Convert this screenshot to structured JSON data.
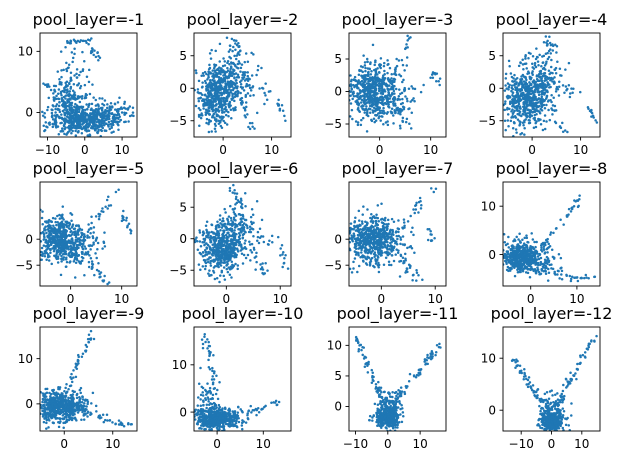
{
  "chart_data": [
    {
      "type": "scatter",
      "title": "pool_layer=-1",
      "xticks": [
        -10,
        0,
        10
      ],
      "yticks": [
        0,
        10
      ],
      "xlim": [
        -12,
        14
      ],
      "ylim": [
        -4,
        13
      ],
      "color": "#1f77b4",
      "clusters": [
        {
          "cx": 0,
          "cy": -1.2,
          "sx": 4.5,
          "sy": 1.1,
          "n": 520
        },
        {
          "cx": -5,
          "cy": 1.5,
          "sx": 2.5,
          "sy": 2.0,
          "n": 160
        },
        {
          "cx": -3,
          "cy": 5,
          "sx": 2.2,
          "sy": 2.5,
          "n": 70
        },
        {
          "cx": 6,
          "cy": 0.2,
          "sx": 4,
          "sy": 1.0,
          "n": 90
        }
      ],
      "lines": [
        {
          "x0": -5,
          "y0": 11.5,
          "x1": 2,
          "y1": 11.7,
          "n": 22,
          "j": 0.25
        },
        {
          "x0": 1,
          "y0": 11.2,
          "x1": 4,
          "y1": 8.5,
          "n": 14,
          "j": 0.3
        },
        {
          "x0": -11,
          "y0": 4.5,
          "x1": -8,
          "y1": 4.2,
          "n": 10,
          "j": 0.25
        },
        {
          "x0": 8,
          "y0": 0,
          "x1": 12.5,
          "y1": 0.8,
          "n": 14,
          "j": 0.3
        }
      ]
    },
    {
      "type": "scatter",
      "title": "pool_layer=-2",
      "xticks": [
        0,
        10
      ],
      "yticks": [
        -5,
        0,
        5
      ],
      "xlim": [
        -6,
        14
      ],
      "ylim": [
        -7.5,
        8.5
      ],
      "color": "#1f77b4",
      "clusters": [
        {
          "cx": -1,
          "cy": -1,
          "sx": 2.2,
          "sy": 2.2,
          "n": 520
        },
        {
          "cx": 2,
          "cy": 2,
          "sx": 2,
          "sy": 2,
          "n": 140
        }
      ],
      "lines": [
        {
          "x0": 1,
          "y0": 7.5,
          "x1": 4,
          "y1": 5,
          "n": 18,
          "j": 0.5
        },
        {
          "x0": 2,
          "y0": 0,
          "x1": 7,
          "y1": -7,
          "n": 22,
          "j": 0.5
        },
        {
          "x0": 3,
          "y0": 2,
          "x1": 9,
          "y1": -1,
          "n": 20,
          "j": 0.6
        },
        {
          "x0": 11,
          "y0": -2,
          "x1": 13,
          "y1": -5,
          "n": 12,
          "j": 0.3
        }
      ]
    },
    {
      "type": "scatter",
      "title": "pool_layer=-3",
      "xticks": [
        0,
        10
      ],
      "yticks": [
        -5,
        0,
        5
      ],
      "xlim": [
        -6,
        13
      ],
      "ylim": [
        -7,
        9
      ],
      "color": "#1f77b4",
      "clusters": [
        {
          "cx": -1.5,
          "cy": 0,
          "sx": 2.2,
          "sy": 2.2,
          "n": 540
        },
        {
          "cx": 3,
          "cy": -1,
          "sx": 2,
          "sy": 2,
          "n": 90
        }
      ],
      "lines": [
        {
          "x0": 2,
          "y0": 1,
          "x1": 6,
          "y1": 8.5,
          "n": 24,
          "j": 0.4
        },
        {
          "x0": 2,
          "y0": -1,
          "x1": 7,
          "y1": -6.5,
          "n": 22,
          "j": 0.5
        },
        {
          "x0": 10,
          "y0": 3.5,
          "x1": 12,
          "y1": 1,
          "n": 12,
          "j": 0.3
        }
      ]
    },
    {
      "type": "scatter",
      "title": "pool_layer=-4",
      "xticks": [
        0,
        10
      ],
      "yticks": [
        -5,
        0,
        5
      ],
      "xlim": [
        -6,
        14
      ],
      "ylim": [
        -7.5,
        8.5
      ],
      "color": "#1f77b4",
      "clusters": [
        {
          "cx": -1,
          "cy": -1.5,
          "sx": 2.2,
          "sy": 2.2,
          "n": 520
        },
        {
          "cx": 2,
          "cy": 2,
          "sx": 2,
          "sy": 2,
          "n": 130
        }
      ],
      "lines": [
        {
          "x0": 3,
          "y0": 8,
          "x1": 5,
          "y1": 5,
          "n": 18,
          "j": 0.5
        },
        {
          "x0": 2,
          "y0": 0,
          "x1": 7,
          "y1": -7,
          "n": 22,
          "j": 0.5
        },
        {
          "x0": 3,
          "y0": 2,
          "x1": 9,
          "y1": -1,
          "n": 20,
          "j": 0.6
        },
        {
          "x0": 11,
          "y0": -2,
          "x1": 13,
          "y1": -5,
          "n": 12,
          "j": 0.3
        }
      ]
    },
    {
      "type": "scatter",
      "title": "pool_layer=-5",
      "xticks": [
        0,
        10
      ],
      "yticks": [
        -5,
        0
      ],
      "xlim": [
        -6,
        13
      ],
      "ylim": [
        -9,
        11
      ],
      "color": "#1f77b4",
      "clusters": [
        {
          "cx": -2,
          "cy": 0,
          "sx": 2.2,
          "sy": 2.2,
          "n": 540
        },
        {
          "cx": 2,
          "cy": -2,
          "sx": 2,
          "sy": 2,
          "n": 90
        }
      ],
      "lines": [
        {
          "x0": 2,
          "y0": 0,
          "x1": 10,
          "y1": 10,
          "n": 28,
          "j": 0.4
        },
        {
          "x0": 2,
          "y0": -2,
          "x1": 7,
          "y1": -8,
          "n": 20,
          "j": 0.5
        },
        {
          "x0": 10,
          "y0": 5,
          "x1": 12,
          "y1": 1,
          "n": 14,
          "j": 0.3
        }
      ]
    },
    {
      "type": "scatter",
      "title": "pool_layer=-6",
      "xticks": [
        0,
        10
      ],
      "yticks": [
        -5,
        0,
        5
      ],
      "xlim": [
        -6,
        12
      ],
      "ylim": [
        -7.5,
        9
      ],
      "color": "#1f77b4",
      "clusters": [
        {
          "cx": -1,
          "cy": -1.5,
          "sx": 2,
          "sy": 2,
          "n": 520
        },
        {
          "cx": 2,
          "cy": 2,
          "sx": 2,
          "sy": 2,
          "n": 120
        }
      ],
      "lines": [
        {
          "x0": 1,
          "y0": 8,
          "x1": 3,
          "y1": 5,
          "n": 16,
          "j": 0.5
        },
        {
          "x0": 3,
          "y0": 0,
          "x1": 7,
          "y1": -5,
          "n": 22,
          "j": 0.5
        },
        {
          "x0": 4,
          "y0": 2,
          "x1": 8,
          "y1": -1,
          "n": 18,
          "j": 0.6
        },
        {
          "x0": 10,
          "y0": 0,
          "x1": 11,
          "y1": -5,
          "n": 12,
          "j": 0.3
        }
      ]
    },
    {
      "type": "scatter",
      "title": "pool_layer=-7",
      "xticks": [
        0,
        10
      ],
      "yticks": [
        -5,
        0
      ],
      "xlim": [
        -6,
        12
      ],
      "ylim": [
        -9,
        11
      ],
      "color": "#1f77b4",
      "clusters": [
        {
          "cx": -2,
          "cy": 0,
          "sx": 2.2,
          "sy": 2.2,
          "n": 540
        },
        {
          "cx": 2,
          "cy": -2,
          "sx": 2,
          "sy": 2,
          "n": 80
        }
      ],
      "lines": [
        {
          "x0": 2,
          "y0": 0,
          "x1": 10,
          "y1": 10,
          "n": 28,
          "j": 0.4
        },
        {
          "x0": 2,
          "y0": -2,
          "x1": 7,
          "y1": -8,
          "n": 20,
          "j": 0.5
        },
        {
          "x0": 9,
          "y0": 2,
          "x1": 10,
          "y1": -1,
          "n": 10,
          "j": 0.3
        }
      ]
    },
    {
      "type": "scatter",
      "title": "pool_layer=-8",
      "xticks": [
        0,
        10
      ],
      "yticks": [
        0,
        10
      ],
      "xlim": [
        -6,
        15
      ],
      "ylim": [
        -6.5,
        15
      ],
      "color": "#1f77b4",
      "clusters": [
        {
          "cx": -2,
          "cy": -0.5,
          "sx": 2,
          "sy": 1.6,
          "n": 520
        },
        {
          "cx": 2,
          "cy": -1,
          "sx": 2.5,
          "sy": 1.8,
          "n": 80
        }
      ],
      "lines": [
        {
          "x0": 2,
          "y0": 1,
          "x1": 12,
          "y1": 13,
          "n": 34,
          "j": 0.4
        },
        {
          "x0": 1,
          "y0": -2,
          "x1": 9,
          "y1": -5,
          "n": 22,
          "j": 0.5
        },
        {
          "x0": 9,
          "y0": -5,
          "x1": 14,
          "y1": -4.5,
          "n": 16,
          "j": 0.3
        }
      ]
    },
    {
      "type": "scatter",
      "title": "pool_layer=-9",
      "xticks": [
        0,
        10
      ],
      "yticks": [
        0,
        10
      ],
      "xlim": [
        -5,
        15
      ],
      "ylim": [
        -6,
        17
      ],
      "color": "#1f77b4",
      "clusters": [
        {
          "cx": -1,
          "cy": -0.5,
          "sx": 2.2,
          "sy": 1.8,
          "n": 500
        },
        {
          "cx": 2,
          "cy": -1,
          "sx": 2.2,
          "sy": 1.5,
          "n": 80
        }
      ],
      "lines": [
        {
          "x0": 0,
          "y0": 2,
          "x1": 6,
          "y1": 16,
          "n": 40,
          "j": 0.4
        },
        {
          "x0": 3,
          "y0": -1,
          "x1": 10,
          "y1": -4,
          "n": 24,
          "j": 0.5
        },
        {
          "x0": 10,
          "y0": -4.5,
          "x1": 14,
          "y1": -4.5,
          "n": 16,
          "j": 0.3
        }
      ]
    },
    {
      "type": "scatter",
      "title": "pool_layer=-10",
      "xticks": [
        0,
        10
      ],
      "yticks": [
        0,
        10
      ],
      "xlim": [
        -5,
        16
      ],
      "ylim": [
        -4,
        18
      ],
      "color": "#1f77b4",
      "clusters": [
        {
          "cx": 0,
          "cy": -1.5,
          "sx": 2.5,
          "sy": 1.2,
          "n": 500
        },
        {
          "cx": -2,
          "cy": 2,
          "sx": 1.2,
          "sy": 2,
          "n": 60
        }
      ],
      "lines": [
        {
          "x0": -3,
          "y0": 17,
          "x1": 0,
          "y1": 5,
          "n": 34,
          "j": 0.4
        },
        {
          "x0": 3,
          "y0": -1,
          "x1": 15,
          "y1": 2.5,
          "n": 30,
          "j": 0.4
        }
      ]
    },
    {
      "type": "scatter",
      "title": "pool_layer=-11",
      "xticks": [
        -10,
        0,
        10
      ],
      "yticks": [
        0,
        5,
        10
      ],
      "xlim": [
        -12,
        18
      ],
      "ylim": [
        -4,
        13
      ],
      "color": "#1f77b4",
      "clusters": [
        {
          "cx": 0,
          "cy": -1.8,
          "sx": 1.8,
          "sy": 0.8,
          "n": 380
        },
        {
          "cx": 1,
          "cy": 0.5,
          "sx": 2,
          "sy": 1.2,
          "n": 90
        }
      ],
      "lines": [
        {
          "x0": -1,
          "y0": 0,
          "x1": -10,
          "y1": 12,
          "n": 60,
          "j": 0.4
        },
        {
          "x0": 1,
          "y0": 0,
          "x1": 16,
          "y1": 10,
          "n": 60,
          "j": 0.4
        }
      ]
    },
    {
      "type": "scatter",
      "title": "pool_layer=-12",
      "xticks": [
        -10,
        0,
        10
      ],
      "yticks": [
        0,
        10
      ],
      "xlim": [
        -16,
        16
      ],
      "ylim": [
        -4,
        16
      ],
      "color": "#1f77b4",
      "clusters": [
        {
          "cx": 0,
          "cy": -2.2,
          "sx": 1.8,
          "sy": 0.9,
          "n": 380
        },
        {
          "cx": 0,
          "cy": 0.5,
          "sx": 2.2,
          "sy": 1.3,
          "n": 80
        }
      ],
      "lines": [
        {
          "x0": -1,
          "y0": 0,
          "x1": -13,
          "y1": 10,
          "n": 60,
          "j": 0.4
        },
        {
          "x0": 1,
          "y0": 0,
          "x1": 14,
          "y1": 14,
          "n": 60,
          "j": 0.4
        }
      ]
    }
  ]
}
